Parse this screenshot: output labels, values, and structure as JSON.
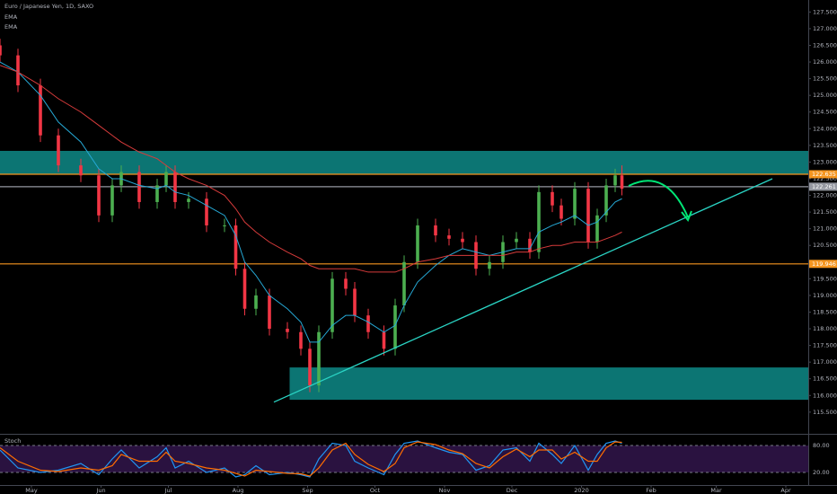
{
  "chart_data": [
    {
      "type": "candlestick",
      "title": "Euro / Japanese Yen, 1D, SAXO",
      "x": [
        -14,
        -6,
        4,
        12,
        22,
        30,
        36,
        40,
        48,
        56,
        60,
        64,
        70,
        78,
        86,
        91,
        95,
        100,
        106,
        114,
        120,
        124,
        128,
        134,
        140,
        144,
        150,
        157,
        162,
        166,
        172,
        180,
        186,
        192,
        198,
        204,
        210,
        216,
        222,
        226,
        232,
        236,
        242,
        248,
        252,
        256,
        260,
        263
      ],
      "open": [
        126.5,
        126.2,
        125.3,
        123.8,
        122.9,
        122.6,
        121.4,
        122.3,
        122.7,
        121.8,
        122.3,
        122.7,
        121.8,
        121.9,
        121.1,
        121.1,
        119.8,
        118.6,
        119.0,
        118.0,
        117.9,
        117.4,
        116.3,
        117.9,
        119.5,
        119.2,
        118.4,
        117.9,
        117.4,
        118.7,
        120.0,
        121.1,
        120.8,
        120.7,
        120.6,
        119.8,
        120.0,
        120.6,
        120.7,
        120.3,
        122.1,
        121.7,
        121.3,
        122.2,
        120.6,
        121.4,
        122.3,
        122.6
      ],
      "high": [
        126.7,
        126.4,
        125.5,
        124.0,
        123.1,
        122.8,
        122.5,
        122.9,
        122.9,
        122.5,
        122.9,
        122.9,
        122.1,
        122.1,
        121.3,
        121.3,
        120.0,
        119.2,
        119.2,
        118.2,
        118.1,
        117.6,
        118.1,
        119.7,
        119.7,
        119.4,
        118.6,
        118.1,
        118.9,
        120.2,
        121.3,
        121.3,
        121.0,
        120.9,
        120.8,
        120.2,
        120.8,
        120.9,
        120.9,
        122.3,
        122.3,
        121.9,
        122.4,
        122.4,
        121.6,
        122.5,
        122.8,
        122.9
      ],
      "low": [
        126.0,
        125.1,
        123.6,
        122.7,
        122.4,
        121.2,
        121.2,
        122.1,
        121.6,
        121.6,
        122.1,
        121.6,
        121.6,
        120.9,
        120.9,
        119.6,
        118.4,
        118.4,
        117.8,
        117.7,
        117.2,
        116.1,
        116.1,
        117.7,
        119.0,
        118.2,
        117.7,
        117.2,
        117.2,
        118.5,
        119.8,
        120.6,
        120.5,
        120.4,
        119.6,
        119.6,
        119.8,
        120.4,
        120.1,
        120.1,
        121.5,
        121.1,
        121.1,
        120.4,
        120.4,
        121.2,
        122.1,
        122.0
      ],
      "close": [
        126.2,
        125.3,
        123.8,
        122.9,
        122.6,
        121.4,
        122.3,
        122.7,
        121.8,
        122.3,
        122.7,
        121.8,
        121.9,
        121.1,
        121.1,
        119.8,
        118.6,
        119.0,
        118.0,
        117.9,
        117.4,
        116.3,
        117.9,
        119.5,
        119.2,
        118.4,
        117.9,
        117.4,
        118.7,
        120.0,
        121.1,
        120.8,
        120.7,
        120.6,
        119.8,
        120.0,
        120.6,
        120.7,
        120.3,
        122.1,
        121.7,
        121.3,
        122.2,
        120.6,
        121.4,
        122.3,
        122.6,
        122.2
      ],
      "up_color": "#4caf50",
      "down_color": "#f23645",
      "series": [
        {
          "name": "EMA",
          "color": "#26a9d6",
          "values": [
            126.0,
            125.7,
            125.0,
            124.2,
            123.6,
            122.8,
            122.5,
            122.5,
            122.3,
            122.2,
            122.3,
            122.1,
            122.0,
            121.7,
            121.4,
            120.8,
            120.0,
            119.6,
            119.0,
            118.6,
            118.2,
            117.6,
            117.6,
            118.1,
            118.4,
            118.4,
            118.2,
            117.9,
            118.1,
            118.7,
            119.4,
            119.9,
            120.2,
            120.4,
            120.3,
            120.2,
            120.3,
            120.4,
            120.4,
            120.9,
            121.1,
            121.2,
            121.4,
            121.1,
            121.2,
            121.5,
            121.8,
            121.9
          ]
        },
        {
          "name": "EMA",
          "color": "#d63b3b",
          "values": [
            125.9,
            125.7,
            125.3,
            124.9,
            124.5,
            124.1,
            123.8,
            123.6,
            123.3,
            123.1,
            122.9,
            122.7,
            122.5,
            122.3,
            122.0,
            121.6,
            121.2,
            120.9,
            120.6,
            120.3,
            120.1,
            119.9,
            119.8,
            119.8,
            119.8,
            119.8,
            119.7,
            119.7,
            119.7,
            119.8,
            120.0,
            120.1,
            120.2,
            120.2,
            120.2,
            120.2,
            120.2,
            120.3,
            120.3,
            120.4,
            120.5,
            120.5,
            120.6,
            120.6,
            120.6,
            120.7,
            120.8,
            120.9
          ]
        }
      ],
      "zones": [
        {
          "x": [
            -14,
            346
          ],
          "y": [
            122.635,
            123.335
          ],
          "color": "#0e8a87"
        },
        {
          "x": [
            115,
            346
          ],
          "y": [
            115.87,
            116.84
          ],
          "color": "#0e8a87"
        }
      ],
      "levels": [
        {
          "value": 122.635,
          "color": "#f5951f"
        },
        {
          "value": 122.261,
          "color": "#9598a1"
        },
        {
          "value": 119.946,
          "color": "#f5951f"
        }
      ],
      "trendline": {
        "x": [
          108,
          330
        ],
        "y": [
          115.8,
          122.5
        ],
        "color": "#2ad4c4"
      },
      "xlim": [
        -14,
        346
      ],
      "ylim": [
        114.93,
        127.86
      ],
      "yticks": [
        {
          "value": 115.5,
          "label": "115.500"
        },
        {
          "value": 116,
          "label": "116.000"
        },
        {
          "value": 116.5,
          "label": "116.500"
        },
        {
          "value": 117,
          "label": "117.000"
        },
        {
          "value": 117.5,
          "label": "117.500"
        },
        {
          "value": 118,
          "label": "118.000"
        },
        {
          "value": 118.5,
          "label": "118.500"
        },
        {
          "value": 119,
          "label": "119.000"
        },
        {
          "value": 119.5,
          "label": "119.500"
        },
        {
          "value": 120,
          "label": "120.000"
        },
        {
          "value": 120.5,
          "label": "120.500"
        },
        {
          "value": 121,
          "label": "121.000"
        },
        {
          "value": 121.5,
          "label": "121.500"
        },
        {
          "value": 122,
          "label": "122.000"
        },
        {
          "value": 122.5,
          "label": "122.500"
        },
        {
          "value": 123,
          "label": "123.000"
        },
        {
          "value": 123.5,
          "label": "123.500"
        },
        {
          "value": 124,
          "label": "124.000"
        },
        {
          "value": 124.5,
          "label": "124.500"
        },
        {
          "value": 125,
          "label": "125.000"
        },
        {
          "value": 125.5,
          "label": "125.500"
        },
        {
          "value": 126,
          "label": "126.000"
        },
        {
          "value": 126.5,
          "label": "126.500"
        },
        {
          "value": 127,
          "label": "127.000"
        },
        {
          "value": 127.5,
          "label": "127.500"
        }
      ],
      "xticks": [
        {
          "value": 0,
          "label": "May"
        },
        {
          "value": 31,
          "label": "Jun"
        },
        {
          "value": 61,
          "label": "Jul"
        },
        {
          "value": 92,
          "label": "Aug"
        },
        {
          "value": 123,
          "label": "Sep"
        },
        {
          "value": 153,
          "label": "Oct"
        },
        {
          "value": 184,
          "label": "Nov"
        },
        {
          "value": 214,
          "label": "Dec"
        },
        {
          "value": 245,
          "label": "2020"
        },
        {
          "value": 276,
          "label": "Feb"
        },
        {
          "value": 305,
          "label": "Mar"
        },
        {
          "value": 336,
          "label": "Apr"
        }
      ]
    },
    {
      "type": "line",
      "title": "Stoch",
      "x": [
        -14,
        -6,
        4,
        12,
        22,
        30,
        36,
        40,
        48,
        56,
        60,
        64,
        70,
        78,
        86,
        91,
        95,
        100,
        106,
        114,
        120,
        124,
        128,
        134,
        140,
        144,
        150,
        157,
        162,
        166,
        172,
        180,
        186,
        192,
        198,
        204,
        210,
        216,
        222,
        226,
        232,
        236,
        242,
        248,
        252,
        256,
        260,
        263
      ],
      "series": [
        {
          "color": "#2196f3",
          "values": [
            70,
            30,
            20,
            25,
            40,
            15,
            50,
            70,
            30,
            55,
            75,
            30,
            45,
            20,
            30,
            10,
            15,
            35,
            15,
            20,
            15,
            10,
            50,
            85,
            80,
            45,
            30,
            15,
            60,
            85,
            90,
            75,
            65,
            60,
            25,
            35,
            70,
            75,
            45,
            85,
            60,
            40,
            80,
            25,
            60,
            85,
            90,
            85
          ]
        },
        {
          "color": "#ff6d00",
          "values": [
            75,
            45,
            25,
            22,
            30,
            25,
            35,
            60,
            45,
            45,
            65,
            45,
            40,
            30,
            25,
            18,
            12,
            25,
            22,
            18,
            17,
            12,
            30,
            70,
            85,
            60,
            38,
            22,
            40,
            75,
            88,
            82,
            70,
            62,
            40,
            30,
            55,
            72,
            55,
            70,
            70,
            50,
            65,
            45,
            45,
            75,
            88,
            87
          ]
        }
      ],
      "ylim": [
        0,
        100
      ],
      "yticks": [
        {
          "value": 80,
          "label": "80.00"
        },
        {
          "value": 20,
          "label": "20.00"
        }
      ],
      "band": {
        "y": [
          20,
          80
        ],
        "color": "#2a1240"
      }
    }
  ]
}
